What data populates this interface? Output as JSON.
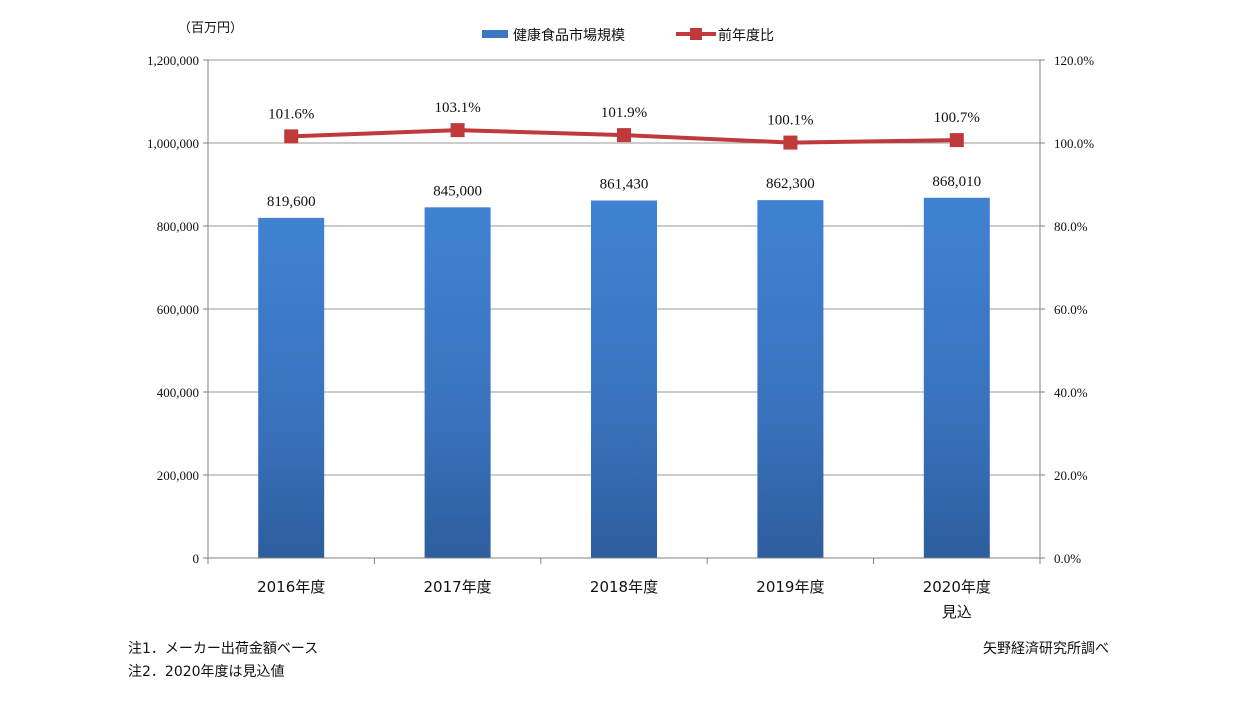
{
  "chart_data": {
    "type": "bar",
    "unit_label": "（百万円）",
    "categories": [
      "2016年度",
      "2017年度",
      "2018年度",
      "2019年度",
      "2020年度"
    ],
    "category_sublabels": [
      "",
      "",
      "",
      "",
      "見込"
    ],
    "series": [
      {
        "name": "健康食品市場規模",
        "type": "bar",
        "axis": "left",
        "values": [
          819600,
          845000,
          861430,
          862300,
          868010
        ],
        "labels": [
          "819,600",
          "845,000",
          "861,430",
          "862,300",
          "868,010"
        ],
        "color": "#3a78c6"
      },
      {
        "name": "前年度比",
        "type": "line",
        "axis": "right",
        "values": [
          101.6,
          103.1,
          101.9,
          100.1,
          100.7
        ],
        "labels": [
          "101.6%",
          "103.1%",
          "101.9%",
          "100.1%",
          "100.7%"
        ],
        "color": "#c0393b"
      }
    ],
    "ylim_left": [
      0,
      1200000
    ],
    "ylim_right": [
      0,
      120
    ],
    "left_ticks": [
      "0",
      "200,000",
      "400,000",
      "600,000",
      "800,000",
      "1,000,000",
      "1,200,000"
    ],
    "right_ticks": [
      "0.0%",
      "20.0%",
      "40.0%",
      "60.0%",
      "80.0%",
      "100.0%",
      "120.0%"
    ],
    "grid": true,
    "legend_position": "top-center"
  },
  "notes": [
    "注1．メーカー出荷金額ベース",
    "注2．2020年度は見込値"
  ],
  "source": "矢野経済研究所調べ"
}
